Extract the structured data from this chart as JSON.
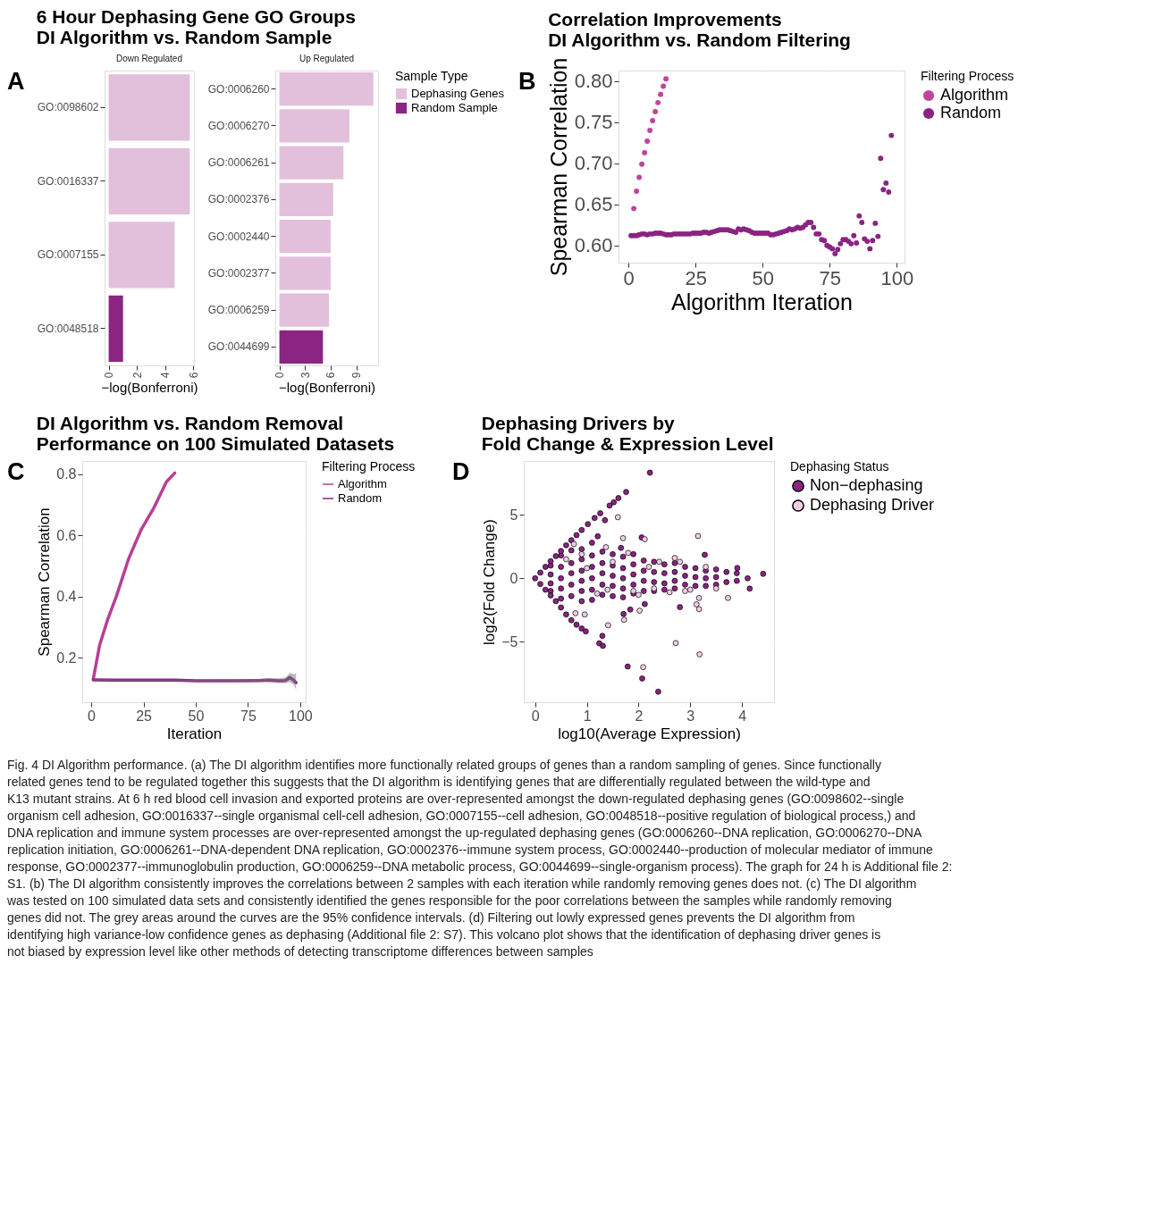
{
  "chart_data": [
    {
      "type": "bar",
      "orientation": "horizontal",
      "title": "6 Hour Dephasing Gene GO Groups\nDI Algorithm vs. Random Sample",
      "subtitle": "Down Regulated",
      "annotations": [
        "A"
      ],
      "xlabel": "−log(Bonferroni)",
      "categories": [
        "GO:0098602",
        "GO:0016337",
        "GO:0007155",
        "GO:0048518"
      ],
      "series": [
        {
          "name": "Dephasing Genes",
          "color": "#e2c0db",
          "values": [
            5.75,
            5.75,
            4.67,
            null
          ]
        },
        {
          "name": "Random Sample",
          "color": "#8b2583",
          "values": [
            null,
            null,
            null,
            1.02
          ]
        }
      ],
      "xlim": [
        -0.29,
        6.04
      ],
      "xticks": [
        0,
        2,
        4,
        6
      ],
      "grid": true,
      "legend": "right",
      "legend_title": "Sample Type"
    },
    {
      "type": "bar",
      "orientation": "horizontal",
      "subtitle": "Up Regulated",
      "xlabel": "−log(Bonferroni)",
      "categories": [
        "GO:0006260",
        "GO:0006270",
        "GO:0006261",
        "GO:0002376",
        "GO:0002440",
        "GO:0002377",
        "GO:0006259",
        "GO:0044699"
      ],
      "series": [
        {
          "name": "Dephasing Genes",
          "color": "#e2c0db",
          "values": [
            11.0,
            8.2,
            7.5,
            6.3,
            6.0,
            6.0,
            5.8,
            null
          ]
        },
        {
          "name": "Random Sample",
          "color": "#8b2583",
          "values": [
            null,
            null,
            null,
            null,
            null,
            null,
            null,
            5.1
          ]
        }
      ],
      "xlim": [
        -0.48,
        11.55
      ],
      "xticks": [
        0,
        3,
        6,
        9
      ],
      "grid": true,
      "legend": false
    },
    {
      "type": "scatter",
      "title": "Correlation Improvements\nDI Algorithm vs. Random Filtering",
      "annotations": [
        "B"
      ],
      "xlabel": "Algorithm Iteration",
      "ylabel": "Spearman Correlation",
      "legend_title": "Filtering Process",
      "marker": "circle",
      "series": [
        {
          "name": "Algorithm",
          "color": "#c0449a",
          "x": [
            2,
            3,
            4,
            5,
            6,
            7,
            8,
            9,
            10,
            11,
            12,
            13,
            14
          ],
          "values": [
            0.645,
            0.666,
            0.683,
            0.699,
            0.713,
            0.727,
            0.74,
            0.752,
            0.763,
            0.774,
            0.784,
            0.794,
            0.803
          ]
        },
        {
          "name": "Random",
          "color": "#8b2383",
          "x": [
            1,
            2,
            3,
            4,
            5,
            6,
            7,
            8,
            9,
            10,
            11,
            12,
            13,
            14,
            15,
            16,
            17,
            18,
            19,
            20,
            21,
            22,
            23,
            24,
            25,
            26,
            27,
            28,
            29,
            30,
            31,
            32,
            33,
            34,
            35,
            36,
            37,
            38,
            39,
            40,
            41,
            42,
            43,
            44,
            45,
            46,
            47,
            48,
            49,
            50,
            51,
            52,
            53,
            54,
            55,
            56,
            57,
            58,
            59,
            60,
            61,
            62,
            63,
            64,
            65,
            66,
            67,
            68,
            69,
            70,
            71,
            72,
            73,
            74,
            75,
            76,
            77,
            78,
            79,
            80,
            81,
            82,
            83,
            84,
            85,
            86,
            87,
            88,
            89,
            90,
            91,
            92,
            93,
            94,
            95,
            96,
            97,
            98
          ],
          "values": [
            0.612,
            0.612,
            0.612,
            0.613,
            0.614,
            0.614,
            0.613,
            0.614,
            0.614,
            0.615,
            0.615,
            0.615,
            0.614,
            0.613,
            0.613,
            0.613,
            0.614,
            0.614,
            0.614,
            0.614,
            0.614,
            0.614,
            0.614,
            0.615,
            0.615,
            0.615,
            0.615,
            0.616,
            0.616,
            0.615,
            0.616,
            0.617,
            0.618,
            0.619,
            0.619,
            0.619,
            0.619,
            0.618,
            0.617,
            0.616,
            0.62,
            0.619,
            0.62,
            0.619,
            0.618,
            0.616,
            0.615,
            0.615,
            0.615,
            0.615,
            0.615,
            0.615,
            0.613,
            0.613,
            0.614,
            0.615,
            0.616,
            0.617,
            0.618,
            0.62,
            0.619,
            0.62,
            0.622,
            0.621,
            0.622,
            0.625,
            0.628,
            0.628,
            0.622,
            0.614,
            0.614,
            0.607,
            0.606,
            0.6,
            0.598,
            0.596,
            0.59,
            0.595,
            0.602,
            0.607,
            0.607,
            0.605,
            0.602,
            0.612,
            0.603,
            0.636,
            0.628,
            0.608,
            0.605,
            0.596,
            0.606,
            0.627,
            0.611,
            0.706,
            0.668,
            0.676,
            0.665,
            0.734
          ]
        }
      ],
      "xlim": [
        -3.7,
        102.9
      ],
      "xticks": [
        0,
        25,
        50,
        75,
        100
      ],
      "ylim": [
        0.579,
        0.813
      ],
      "yticks": [
        {
          "value": 0.6,
          "label": "0.60"
        },
        0.65,
        {
          "value": 0.7,
          "label": "0.70"
        },
        0.75,
        {
          "value": 0.8,
          "label": "0.80"
        }
      ],
      "grid": true,
      "legend": "right"
    },
    {
      "type": "line",
      "title": "DI Algorithm vs. Random Removal\nPerformance on 100 Simulated Datasets",
      "annotations": [
        "C"
      ],
      "xlabel": "Iteration",
      "ylabel": "Spearman Correlation",
      "legend_title": "Filtering Process",
      "line_style": "solid",
      "series": [
        {
          "name": "Algorithm",
          "color": "#b83f96",
          "x": [
            1,
            4,
            8,
            12,
            18,
            24,
            30,
            36,
            40
          ],
          "values": [
            0.13,
            0.24,
            0.327,
            0.4,
            0.525,
            0.62,
            0.69,
            0.775,
            0.804
          ]
        },
        {
          "name": "Random",
          "color": "#8b2383",
          "x": [
            1,
            10,
            20,
            30,
            40,
            50,
            60,
            70,
            80,
            85,
            90,
            93,
            95,
            97,
            98
          ],
          "values": [
            0.127,
            0.126,
            0.126,
            0.126,
            0.126,
            0.124,
            0.124,
            0.124,
            0.125,
            0.126,
            0.124,
            0.125,
            0.135,
            0.125,
            0.118
          ],
          "lower": [
            0.125,
            0.124,
            0.124,
            0.124,
            0.124,
            0.121,
            0.121,
            0.12,
            0.12,
            0.12,
            0.116,
            0.117,
            0.12,
            0.11,
            0.095
          ],
          "upper": [
            0.129,
            0.128,
            0.128,
            0.128,
            0.128,
            0.127,
            0.127,
            0.128,
            0.13,
            0.132,
            0.132,
            0.135,
            0.15,
            0.145,
            0.15
          ]
        }
      ],
      "xlim": [
        -4.3,
        102.6
      ],
      "xticks": [
        0,
        25,
        50,
        75,
        100
      ],
      "ylim": [
        0.054,
        0.843
      ],
      "yticks": [
        0.2,
        0.4,
        0.6,
        0.8
      ],
      "grid": true,
      "legend": "right"
    },
    {
      "type": "scatter",
      "title": "Dephasing Drivers by\nFold Change & Expression Level",
      "annotations": [
        "D"
      ],
      "xlabel": "log10(Average Expression)",
      "ylabel": "log2(Fold Change)",
      "legend_title": "Dephasing Status",
      "marker": "circle",
      "series": [
        {
          "name": "Non−dephasing",
          "color": "#8b2383",
          "x": [
            0.3,
            0.3,
            0.3,
            0.3,
            0.5,
            0.5,
            0.5,
            0.5,
            0.5,
            0.7,
            0.7,
            0.7,
            0.7,
            0.7,
            0.9,
            0.9,
            0.9,
            0.9,
            0.9,
            0.9,
            1.1,
            1.1,
            1.1,
            1.1,
            1.1,
            1.1,
            1.3,
            1.3,
            1.3,
            1.3,
            1.3,
            1.5,
            1.5,
            1.5,
            1.5,
            1.5,
            1.7,
            1.7,
            1.7,
            1.7,
            1.7,
            1.9,
            1.9,
            1.9,
            1.9,
            1.9,
            2.1,
            2.1,
            2.1,
            2.1,
            2.3,
            2.3,
            2.3,
            2.3,
            2.5,
            2.5,
            2.5,
            2.5,
            2.7,
            2.7,
            2.7,
            2.7,
            2.9,
            2.9,
            2.9,
            3.1,
            3.1,
            3.1,
            3.3,
            3.3,
            3.3,
            3.5,
            3.5,
            3.5,
            3.7,
            3.7,
            3.9,
            3.9,
            0,
            0.1,
            0.2,
            0.3,
            0.4,
            0.5,
            0.6,
            0.7,
            0.8,
            0.9,
            0.1,
            0.2,
            0.3,
            0.4,
            0.5,
            0.6,
            0.7,
            0.8,
            0.9,
            2.22,
            1.76,
            1.61,
            1.52,
            1.44,
            1.26,
            1.15,
            1.35,
            1.02,
            2.06,
            3.28,
            1.21,
            1.66,
            1.79,
            2.07,
            2.38,
            1.3,
            1.24,
            1.31,
            0.98,
            1.71,
            1.84,
            2.8,
            2.12,
            4.15,
            4.41,
            4.11,
            3.91
          ],
          "values": [
            1.0,
            0.3,
            -0.4,
            -1.0,
            1.8,
            0.9,
            0,
            -0.8,
            -1.6,
            2.2,
            1.2,
            0.4,
            -0.5,
            -1.4,
            2.3,
            1.5,
            0.6,
            -0.2,
            -1.0,
            -1.8,
            2.8,
            1.8,
            0.9,
            0,
            -0.9,
            -1.7,
            2.1,
            1.2,
            0.4,
            -0.5,
            -1.3,
            1.9,
            1.0,
            0.2,
            -0.6,
            -1.4,
            1.7,
            0.8,
            0,
            -0.8,
            -1.5,
            1.9,
            1.1,
            0.3,
            -0.5,
            -1.2,
            1.4,
            0.6,
            -0.2,
            -1.0,
            1.3,
            0.5,
            -0.3,
            -1.0,
            1.1,
            0.4,
            -0.4,
            -0.9,
            1.2,
            0.5,
            -0.2,
            -0.8,
            0.9,
            0.2,
            -0.5,
            0.8,
            0.1,
            -0.6,
            0.6,
            0,
            -0.6,
            0.7,
            0.1,
            -0.5,
            0.5,
            -0.3,
            0.4,
            -0.2,
            0,
            0.45,
            0.9,
            1.35,
            1.75,
            2.15,
            2.6,
            3.0,
            3.4,
            3.8,
            -0.45,
            -0.9,
            -1.35,
            -1.8,
            -2.3,
            -2.85,
            -3.3,
            -3.65,
            -3.95,
            8.32,
            6.8,
            6.32,
            5.99,
            5.73,
            5.12,
            4.75,
            4.58,
            4.27,
            3.22,
            1.85,
            3.31,
            2.4,
            -6.95,
            -7.89,
            -8.93,
            -4.53,
            -5.12,
            -5.32,
            -4.18,
            -2.81,
            -2.46,
            -2.27,
            -2.03,
            -0.81,
            0.35,
            0,
            0.81
          ]
        },
        {
          "name": "Dephasing Driver",
          "color": "#f2cce6",
          "x": [
            1.6,
            1.7,
            2.12,
            3.15,
            2.72,
            3.18,
            2.09,
            1.41,
            1.72,
            0.78,
            0.96,
            2.02,
            3.17,
            3.12,
            3.17,
            3.73,
            1.37,
            0.75,
            0.9,
            1.2,
            1.5,
            1.8,
            2.0,
            2.4,
            2.6,
            2.8,
            3.0,
            3.3,
            2.2,
            1.0,
            1.4,
            2.9,
            3.5,
            0.6,
            1.9,
            2.3,
            2.7
          ],
          "values": [
            4.81,
            3.16,
            3.08,
            3.33,
            -5.1,
            -5.99,
            -7.0,
            -3.7,
            -3.27,
            -2.75,
            -2.85,
            -2.55,
            -2.43,
            -2.05,
            -1.55,
            -1.55,
            2.45,
            2.7,
            1.9,
            -1.2,
            1.3,
            2.0,
            -1.3,
            1.3,
            -1.1,
            1.3,
            -0.9,
            0.9,
            0.9,
            0.8,
            -0.9,
            -1.0,
            -0.8,
            1.5,
            -1.0,
            -0.8,
            1.6
          ]
        }
      ],
      "xlim": [
        -0.22,
        4.62
      ],
      "xticks": [
        0,
        1,
        2,
        3,
        4
      ],
      "ylim": [
        -9.76,
        9.24
      ],
      "yticks": [
        -5,
        0,
        5
      ],
      "grid": true,
      "legend": "right"
    },
    {
      "type": "other",
      "annotations": [
        "Fig. 4 DI Algorithm performance. (a) The DI algorithm identifies more functionally related groups of genes than a random sampling of genes. Since functionally related genes tend to be regulated together this suggests that the DI algorithm is identifying genes that are differentially regulated between the wild-type and K13 mutant strains. At 6 h red blood cell invasion and exported proteins are over-represented amongst the down-regulated dephasing genes (GO:0098602--single organism cell adhesion, GO:0016337--single organismal cell-cell adhesion, GO:0007155--cell adhesion, GO:0048518--positive regulation of biological process,) and DNA replication and immune system processes are over-represented amongst the up-regulated dephasing genes (GO:0006260--DNA replication, GO:0006270--DNA replication initiation, GO:0006261--DNA-dependent DNA replication, GO:0002376--immune system process, GO:0002440--production of molecular mediator of immune response, GO:0002377--immunoglobulin production, GO:0006259--DNA metabolic process, GO:0044699--single-organism process). The graph for 24 h is Additional file 2: S1. (b) The DI algorithm consistently improves the correlations between 2 samples with each iteration while randomly removing genes does not. (c) The DI algorithm was tested on 100 simulated data sets and consistently identified the genes responsible for the poor correlations between the samples while randomly removing genes did not. The grey areas around the curves are the 95% confidence intervals. (d) Filtering out lowly expressed genes prevents the DI algorithm from identifying high variance-low confidence genes as dephasing (Additional file 2: S7). This volcano plot shows that the identification of dephasing driver genes is not biased by expression level like other methods of detecting transcriptome differences between samples"
      ]
    }
  ]
}
